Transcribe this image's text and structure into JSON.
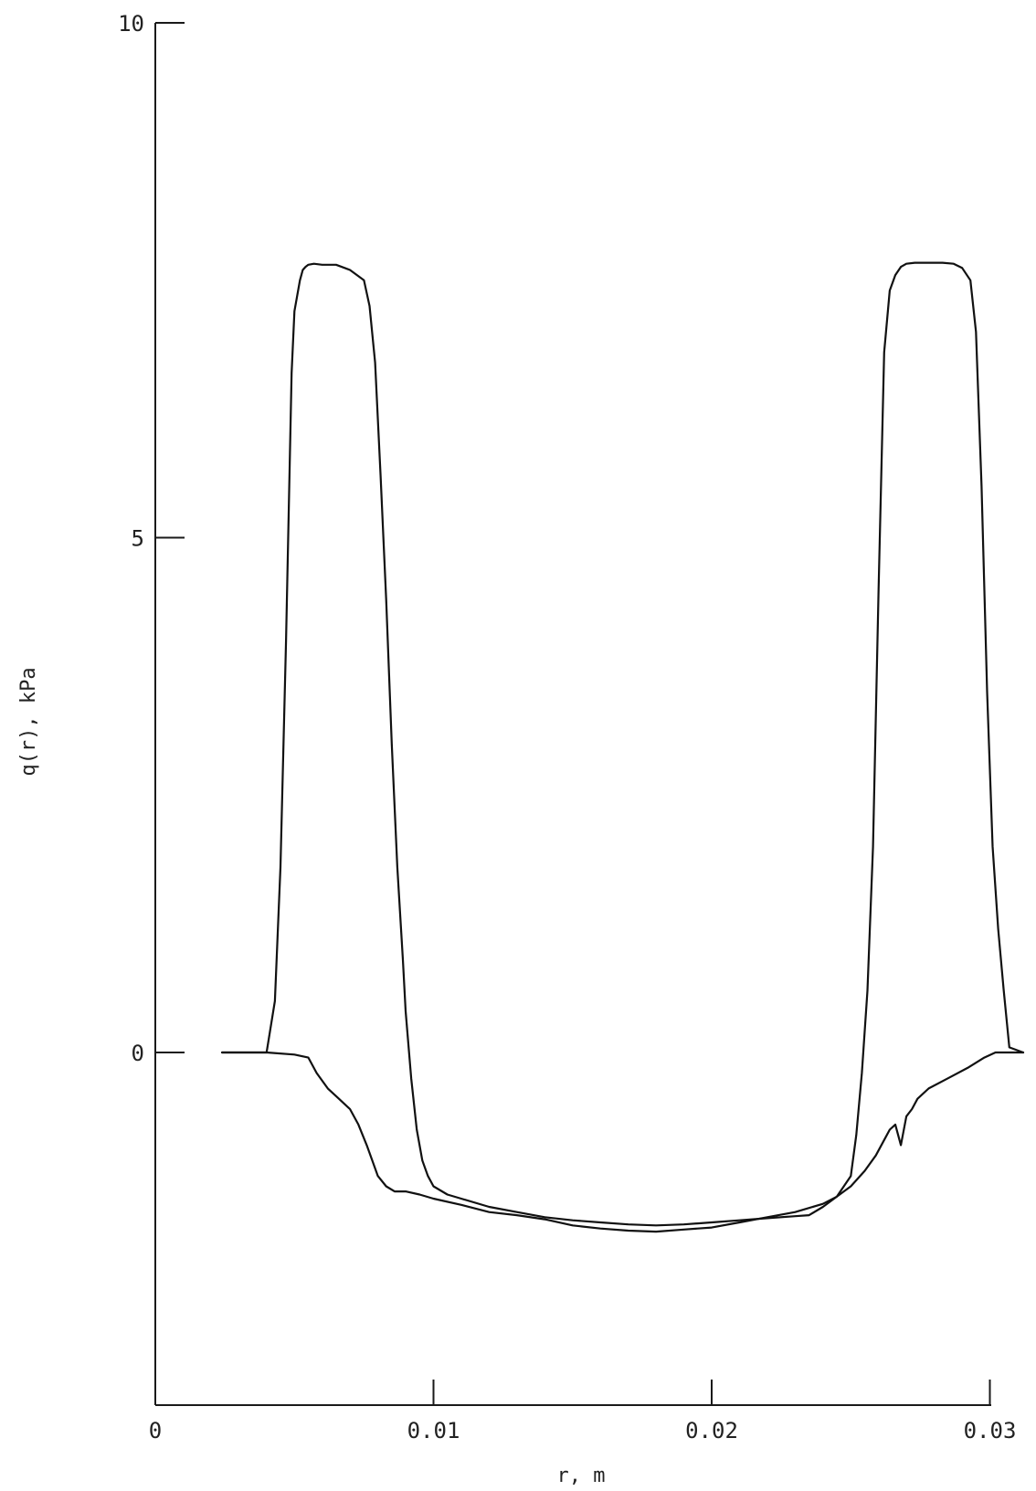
{
  "chart_data": {
    "type": "line",
    "title": "",
    "xlabel": "r, m",
    "ylabel": "q(r), kPa",
    "xlim": [
      0,
      0.031
    ],
    "ylim": [
      -3.4,
      10
    ],
    "grid": false,
    "x_ticks": [
      {
        "value": 0,
        "label": "0"
      },
      {
        "value": 0.01,
        "label": "0.01"
      },
      {
        "value": 0.02,
        "label": "0.02"
      },
      {
        "value": 0.03,
        "label": "0.03"
      }
    ],
    "y_ticks": [
      {
        "value": 0,
        "label": "0"
      },
      {
        "value": 5,
        "label": "5"
      },
      {
        "value": 10,
        "label": "10"
      }
    ],
    "series": [
      {
        "x": [
          0.0024,
          0.004,
          0.0043,
          0.0045,
          0.0047,
          0.0049,
          0.005,
          0.0052,
          0.0053,
          0.0054,
          0.0055,
          0.0057,
          0.006,
          0.0065,
          0.007,
          0.0075,
          0.0077,
          0.0079,
          0.0081,
          0.0083,
          0.0085,
          0.0087,
          0.0089,
          0.009,
          0.0092,
          0.0094,
          0.0096,
          0.0098,
          0.01,
          0.0105,
          0.011,
          0.012,
          0.013,
          0.014,
          0.015,
          0.016,
          0.017,
          0.018,
          0.019,
          0.02,
          0.021,
          0.022,
          0.023,
          0.0235,
          0.024,
          0.0245,
          0.025,
          0.0252,
          0.0254,
          0.0256,
          0.0258,
          0.026,
          0.0262,
          0.0264,
          0.0266,
          0.0268,
          0.027,
          0.0273,
          0.0278,
          0.0283,
          0.0287,
          0.029,
          0.0293,
          0.0295,
          0.0297,
          0.0299,
          0.0301,
          0.0303,
          0.0305,
          0.0307,
          0.0312
        ],
        "values": [
          0.0,
          0.0,
          0.5,
          1.8,
          4.0,
          6.6,
          7.2,
          7.5,
          7.6,
          7.63,
          7.65,
          7.66,
          7.65,
          7.65,
          7.6,
          7.5,
          7.25,
          6.7,
          5.6,
          4.4,
          3.0,
          1.8,
          0.9,
          0.4,
          -0.25,
          -0.75,
          -1.05,
          -1.2,
          -1.3,
          -1.38,
          -1.42,
          -1.5,
          -1.55,
          -1.6,
          -1.63,
          -1.65,
          -1.67,
          -1.68,
          -1.67,
          -1.65,
          -1.63,
          -1.61,
          -1.59,
          -1.58,
          -1.5,
          -1.4,
          -1.2,
          -0.8,
          -0.2,
          0.6,
          2.0,
          4.5,
          6.8,
          7.4,
          7.55,
          7.63,
          7.66,
          7.67,
          7.67,
          7.67,
          7.66,
          7.62,
          7.5,
          7.0,
          5.5,
          3.5,
          2.0,
          1.2,
          0.6,
          0.05,
          0.0
        ]
      },
      {
        "x": [
          0.0024,
          0.004,
          0.005,
          0.0055,
          0.0058,
          0.0062,
          0.0066,
          0.007,
          0.0073,
          0.0076,
          0.0078,
          0.008,
          0.0083,
          0.0086,
          0.009,
          0.0095,
          0.01,
          0.011,
          0.012,
          0.013,
          0.014,
          0.015,
          0.016,
          0.017,
          0.018,
          0.019,
          0.02,
          0.021,
          0.022,
          0.023,
          0.024,
          0.0245,
          0.025,
          0.0255,
          0.0259,
          0.0262,
          0.0264,
          0.0266,
          0.0268,
          0.027,
          0.0272,
          0.0274,
          0.0278,
          0.0285,
          0.0292,
          0.0298,
          0.0302,
          0.0306,
          0.031,
          0.0312
        ],
        "values": [
          0.0,
          0.0,
          -0.02,
          -0.05,
          -0.2,
          -0.35,
          -0.45,
          -0.55,
          -0.7,
          -0.9,
          -1.05,
          -1.2,
          -1.3,
          -1.35,
          -1.35,
          -1.38,
          -1.42,
          -1.48,
          -1.55,
          -1.58,
          -1.62,
          -1.68,
          -1.71,
          -1.73,
          -1.74,
          -1.72,
          -1.7,
          -1.65,
          -1.6,
          -1.55,
          -1.47,
          -1.4,
          -1.3,
          -1.15,
          -1.0,
          -0.85,
          -0.75,
          -0.7,
          -0.9,
          -0.62,
          -0.55,
          -0.45,
          -0.35,
          -0.25,
          -0.15,
          -0.05,
          0.0,
          0.0,
          0.0,
          0.0
        ]
      }
    ]
  }
}
